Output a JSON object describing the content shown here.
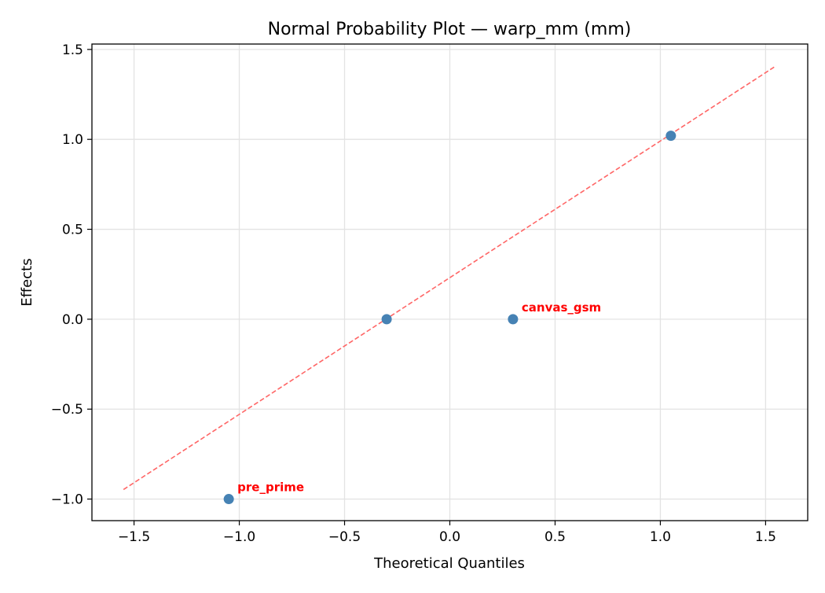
{
  "chart_data": {
    "type": "scatter",
    "title": "Normal Probability Plot — warp_mm (mm)",
    "xlabel": "Theoretical Quantiles",
    "ylabel": "Effects",
    "xlim": [
      -1.7,
      1.7
    ],
    "ylim": [
      -1.12,
      1.53
    ],
    "xticks": [
      -1.5,
      -1.0,
      -0.5,
      0.0,
      0.5,
      1.0,
      1.5
    ],
    "xtick_labels": [
      "−1.5",
      "−1.0",
      "−0.5",
      "0.0",
      "0.5",
      "1.0",
      "1.5"
    ],
    "yticks": [
      -1.0,
      -0.5,
      0.0,
      0.5,
      1.0,
      1.5
    ],
    "ytick_labels": [
      "−1.0",
      "−0.5",
      "0.0",
      "0.5",
      "1.0",
      "1.5"
    ],
    "grid": true,
    "points": [
      {
        "x": -1.05,
        "y": -1.0,
        "label": "pre_prime"
      },
      {
        "x": -0.3,
        "y": 0.0,
        "label": ""
      },
      {
        "x": 0.3,
        "y": 0.0,
        "label": "canvas_gsm"
      },
      {
        "x": 1.05,
        "y": 1.02,
        "label": ""
      }
    ],
    "reference_line": {
      "x": [
        -1.55,
        1.55
      ],
      "y": [
        -0.947,
        1.409
      ],
      "style": "dashed"
    },
    "colors": {
      "points": "#4682b4",
      "reference_line": "#ff6666",
      "annotations": "#ff0000"
    }
  }
}
